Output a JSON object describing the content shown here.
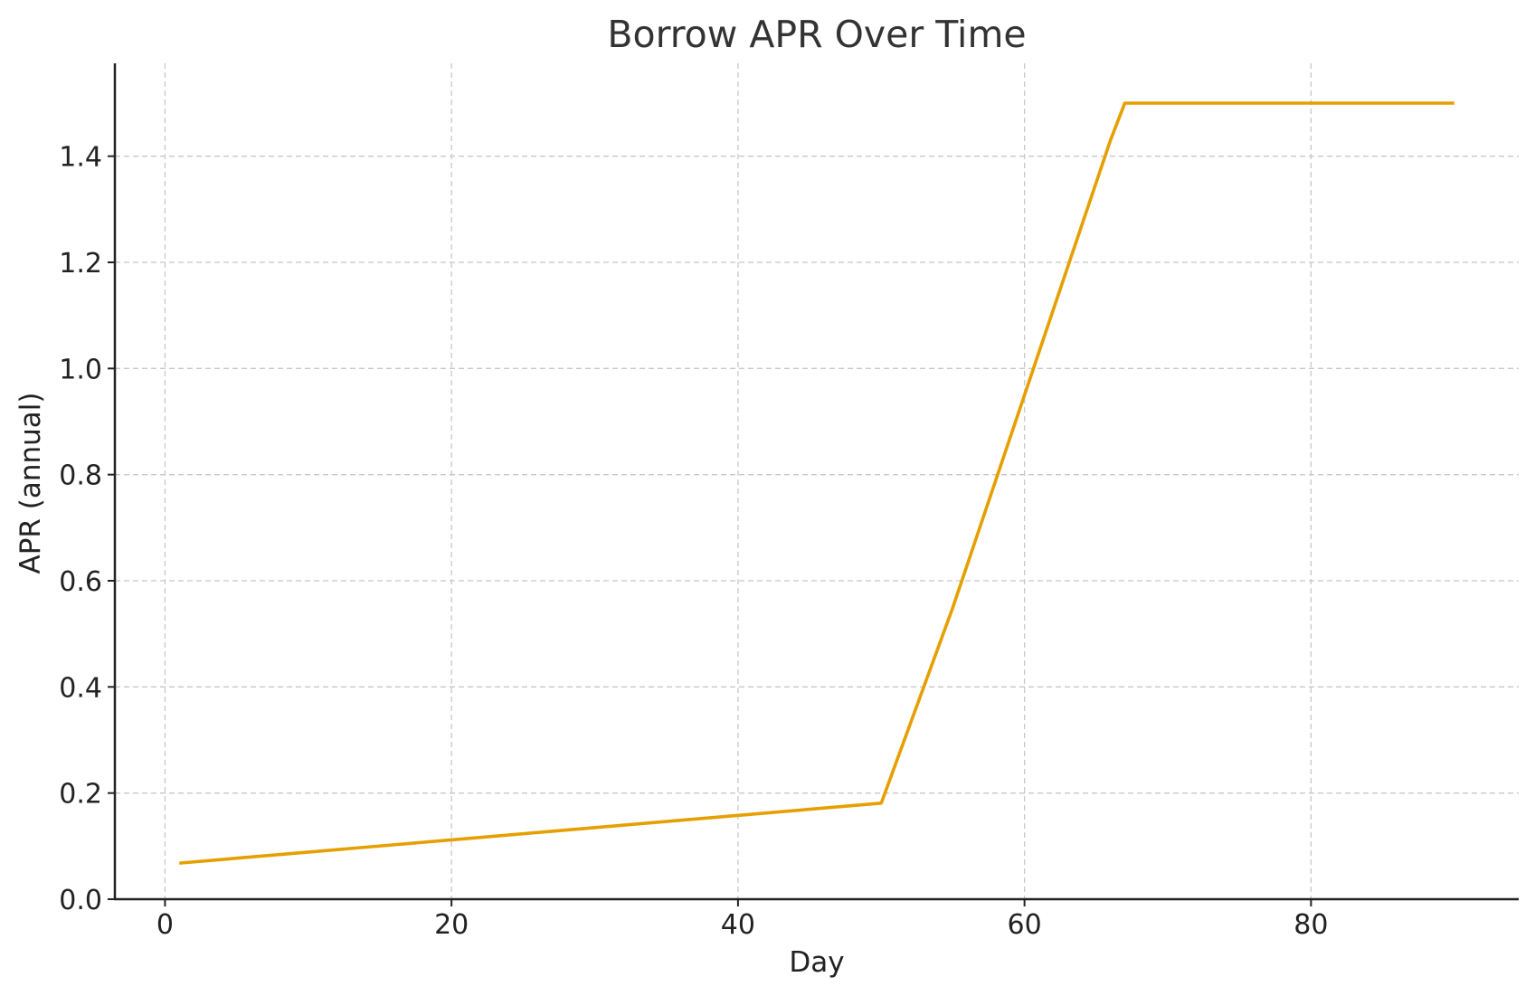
{
  "chart_data": {
    "type": "line",
    "title": "Borrow APR Over Time",
    "xlabel": "Day",
    "ylabel": "APR (annual)",
    "xlim": [
      -3.5,
      94.5
    ],
    "ylim": [
      0.0,
      1.575
    ],
    "xticks": [
      0,
      20,
      40,
      60,
      80
    ],
    "xtick_labels": [
      "0",
      "20",
      "40",
      "60",
      "80"
    ],
    "yticks": [
      0.0,
      0.2,
      0.4,
      0.6,
      0.8,
      1.0,
      1.2,
      1.4
    ],
    "ytick_labels": [
      "0.0",
      "0.2",
      "0.4",
      "0.6",
      "0.8",
      "1.0",
      "1.2",
      "1.4"
    ],
    "grid": true,
    "series": [
      {
        "color": "#E69F00",
        "x": [
          1,
          50,
          55,
          60,
          66,
          67,
          90
        ],
        "y": [
          0.068,
          0.181,
          0.55,
          0.95,
          1.43,
          1.5,
          1.5
        ]
      }
    ]
  }
}
